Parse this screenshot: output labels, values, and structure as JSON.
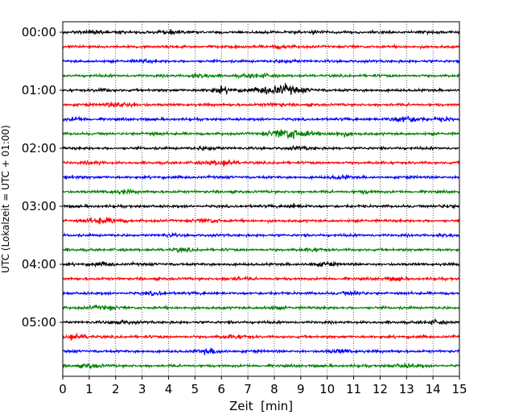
{
  "chart_data": {
    "type": "line",
    "title": "",
    "xlabel": "Zeit  [min]",
    "ylabel": "UTC (Lokalzeit = UTC + 01:00)",
    "xlim": [
      0,
      15
    ],
    "x_ticks": [
      0,
      1,
      2,
      3,
      4,
      5,
      6,
      7,
      8,
      9,
      10,
      11,
      12,
      13,
      14,
      15
    ],
    "x_tick_labels": [
      "0",
      "1",
      "2",
      "3",
      "4",
      "5",
      "6",
      "7",
      "8",
      "9",
      "10",
      "11",
      "12",
      "13",
      "14",
      "15"
    ],
    "y_tick_labels": [
      "00:00",
      "01:00",
      "02:00",
      "03:00",
      "04:00",
      "05:00"
    ],
    "grid": "x",
    "trace_colors": [
      "#000000",
      "#ff0000",
      "#0000ff",
      "#008000"
    ],
    "series": [
      {
        "start": "00:00",
        "color": "#000000",
        "bursts": [
          {
            "t": 1.2,
            "amp": 2.0,
            "w": 0.3
          },
          {
            "t": 4.0,
            "amp": 1.8,
            "w": 0.3
          },
          {
            "t": 9.5,
            "amp": 1.5,
            "w": 0.3
          }
        ]
      },
      {
        "start": "00:15",
        "color": "#ff0000",
        "bursts": [
          {
            "t": 8.3,
            "amp": 1.5,
            "w": 0.4
          }
        ]
      },
      {
        "start": "00:30",
        "color": "#0000ff",
        "bursts": [
          {
            "t": 3.0,
            "amp": 1.5,
            "w": 0.3
          },
          {
            "t": 8.5,
            "amp": 1.4,
            "w": 0.4
          }
        ]
      },
      {
        "start": "00:45",
        "color": "#008000",
        "bursts": [
          {
            "t": 5.2,
            "amp": 2.5,
            "w": 0.4
          },
          {
            "t": 7.3,
            "amp": 2.2,
            "w": 0.5
          }
        ]
      },
      {
        "start": "01:00",
        "color": "#000000",
        "bursts": [
          {
            "t": 6.0,
            "amp": 3.0,
            "w": 0.5
          },
          {
            "t": 8.2,
            "amp": 5.5,
            "w": 0.9
          },
          {
            "t": 1.5,
            "amp": 1.5,
            "w": 0.3
          }
        ]
      },
      {
        "start": "01:15",
        "color": "#ff0000",
        "bursts": [
          {
            "t": 2.3,
            "amp": 2.8,
            "w": 0.6
          },
          {
            "t": 8.0,
            "amp": 1.5,
            "w": 0.4
          }
        ]
      },
      {
        "start": "01:30",
        "color": "#0000ff",
        "bursts": [
          {
            "t": 0.5,
            "amp": 1.8,
            "w": 0.3
          },
          {
            "t": 13.0,
            "amp": 3.5,
            "w": 0.6
          },
          {
            "t": 14.4,
            "amp": 2.0,
            "w": 0.3
          }
        ]
      },
      {
        "start": "01:45",
        "color": "#008000",
        "bursts": [
          {
            "t": 8.6,
            "amp": 6.0,
            "w": 0.7
          },
          {
            "t": 10.5,
            "amp": 2.0,
            "w": 0.5
          },
          {
            "t": 3.4,
            "amp": 1.5,
            "w": 0.3
          }
        ]
      },
      {
        "start": "02:00",
        "color": "#000000",
        "bursts": [
          {
            "t": 5.5,
            "amp": 1.8,
            "w": 0.4
          },
          {
            "t": 9.0,
            "amp": 1.5,
            "w": 0.4
          }
        ]
      },
      {
        "start": "02:15",
        "color": "#ff0000",
        "bursts": [
          {
            "t": 6.0,
            "amp": 3.0,
            "w": 0.6
          },
          {
            "t": 1.2,
            "amp": 1.5,
            "w": 0.3
          }
        ]
      },
      {
        "start": "02:30",
        "color": "#0000ff",
        "bursts": [
          {
            "t": 0.3,
            "amp": 1.5,
            "w": 0.3
          },
          {
            "t": 10.5,
            "amp": 1.8,
            "w": 0.4
          }
        ]
      },
      {
        "start": "02:45",
        "color": "#008000",
        "bursts": [
          {
            "t": 2.2,
            "amp": 1.8,
            "w": 0.5
          },
          {
            "t": 11.5,
            "amp": 1.5,
            "w": 0.3
          }
        ]
      },
      {
        "start": "03:00",
        "color": "#000000",
        "bursts": [
          {
            "t": 8.8,
            "amp": 1.8,
            "w": 0.4
          },
          {
            "t": 14.5,
            "amp": 1.5,
            "w": 0.3
          }
        ]
      },
      {
        "start": "03:15",
        "color": "#ff0000",
        "bursts": [
          {
            "t": 1.5,
            "amp": 3.0,
            "w": 0.7
          },
          {
            "t": 5.5,
            "amp": 1.8,
            "w": 0.5
          }
        ]
      },
      {
        "start": "03:30",
        "color": "#0000ff",
        "bursts": [
          {
            "t": 4.0,
            "amp": 1.5,
            "w": 0.3
          },
          {
            "t": 14.5,
            "amp": 1.8,
            "w": 0.3
          }
        ]
      },
      {
        "start": "03:45",
        "color": "#008000",
        "bursts": [
          {
            "t": 4.5,
            "amp": 1.8,
            "w": 0.4
          },
          {
            "t": 9.5,
            "amp": 1.5,
            "w": 0.4
          }
        ]
      },
      {
        "start": "04:00",
        "color": "#000000",
        "bursts": [
          {
            "t": 1.5,
            "amp": 1.8,
            "w": 0.4
          },
          {
            "t": 9.8,
            "amp": 1.8,
            "w": 0.5
          }
        ]
      },
      {
        "start": "04:15",
        "color": "#ff0000",
        "bursts": [
          {
            "t": 6.5,
            "amp": 1.5,
            "w": 0.4
          },
          {
            "t": 12.5,
            "amp": 1.5,
            "w": 0.4
          }
        ]
      },
      {
        "start": "04:30",
        "color": "#0000ff",
        "bursts": [
          {
            "t": 3.5,
            "amp": 1.5,
            "w": 0.4
          },
          {
            "t": 11.0,
            "amp": 1.8,
            "w": 0.5
          }
        ]
      },
      {
        "start": "04:45",
        "color": "#008000",
        "bursts": [
          {
            "t": 1.5,
            "amp": 1.8,
            "w": 0.5
          },
          {
            "t": 8.0,
            "amp": 1.5,
            "w": 0.4
          }
        ]
      },
      {
        "start": "05:00",
        "color": "#000000",
        "bursts": [
          {
            "t": 2.2,
            "amp": 1.8,
            "w": 0.4
          },
          {
            "t": 14.0,
            "amp": 1.8,
            "w": 0.4
          }
        ]
      },
      {
        "start": "05:15",
        "color": "#ff0000",
        "bursts": [
          {
            "t": 0.5,
            "amp": 3.0,
            "w": 0.5
          },
          {
            "t": 6.5,
            "amp": 1.8,
            "w": 0.5
          }
        ]
      },
      {
        "start": "05:30",
        "color": "#0000ff",
        "bursts": [
          {
            "t": 5.6,
            "amp": 2.5,
            "w": 0.5
          },
          {
            "t": 10.5,
            "amp": 1.8,
            "w": 0.5
          }
        ]
      },
      {
        "start": "05:45",
        "color": "#008000",
        "bursts": [
          {
            "t": 1.0,
            "amp": 2.0,
            "w": 0.5
          },
          {
            "t": 13.0,
            "amp": 1.8,
            "w": 0.5
          }
        ]
      }
    ]
  }
}
